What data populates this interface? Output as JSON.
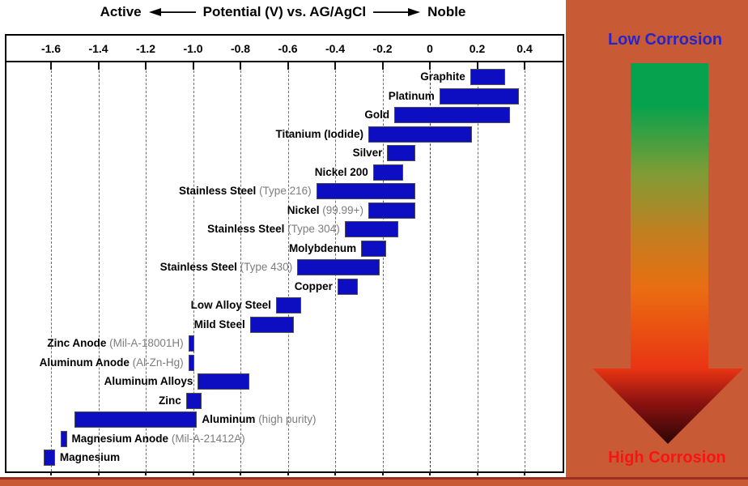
{
  "title": {
    "active_label": "Active",
    "center_label": "Potential (V) vs. AG/AgCl",
    "noble_label": "Noble"
  },
  "axis": {
    "tick_labels": [
      "-1.6",
      "-1.4",
      "-1.2",
      "-1.0",
      "-0.8",
      "-0.6",
      "-0.4",
      "-0.2",
      "0",
      "0.2",
      "0.4"
    ],
    "tick_values": [
      -1.6,
      -1.4,
      -1.2,
      -1.0,
      -0.8,
      -0.6,
      -0.4,
      -0.2,
      0,
      0.2,
      0.4
    ]
  },
  "chart_data": {
    "type": "bar",
    "orientation": "horizontal-range",
    "title": "Active — Potential (V) vs. AG/AgCl — Noble",
    "xlabel": "Potential (V) vs. AG/AgCl",
    "xlim": [
      -1.79,
      0.57
    ],
    "xticks": [
      -1.6,
      -1.4,
      -1.2,
      -1.0,
      -0.8,
      -0.6,
      -0.4,
      -0.2,
      0,
      0.2,
      0.4
    ],
    "grid": "vertical-dashed",
    "zero_line": "dashed",
    "bar_color": "#0d0dc2",
    "bar_border_color": "#4d4d4d",
    "series": [
      {
        "name": "Graphite",
        "note": "",
        "range": [
          0.17,
          0.31
        ],
        "label_side": "left"
      },
      {
        "name": "Platinum",
        "note": "",
        "range": [
          0.04,
          0.37
        ],
        "label_side": "left"
      },
      {
        "name": "Gold",
        "note": "",
        "range": [
          -0.15,
          0.33
        ],
        "label_side": "left"
      },
      {
        "name": "Titanium (Iodide)",
        "note": "",
        "range": [
          -0.26,
          0.17
        ],
        "label_side": "left"
      },
      {
        "name": "Silver",
        "note": "",
        "range": [
          -0.18,
          -0.07
        ],
        "label_side": "left"
      },
      {
        "name": "Nickel 200",
        "note": "",
        "range": [
          -0.24,
          -0.12
        ],
        "label_side": "left"
      },
      {
        "name": "Stainless Steel",
        "note": "(Type 216)",
        "range": [
          -0.48,
          -0.07
        ],
        "label_side": "left"
      },
      {
        "name": "Nickel",
        "note": "(99.99+)",
        "range": [
          -0.26,
          -0.07
        ],
        "label_side": "left"
      },
      {
        "name": "Stainless Steel",
        "note": "(Type 304)",
        "range": [
          -0.36,
          -0.14
        ],
        "label_side": "left"
      },
      {
        "name": "Molybdenum",
        "note": "",
        "range": [
          -0.29,
          -0.19
        ],
        "label_side": "left"
      },
      {
        "name": "Stainless Steel",
        "note": "(Type 430)",
        "range": [
          -0.56,
          -0.22
        ],
        "label_side": "left"
      },
      {
        "name": "Copper",
        "note": "",
        "range": [
          -0.39,
          -0.31
        ],
        "label_side": "left"
      },
      {
        "name": "Low Alloy Steel",
        "note": "",
        "range": [
          -0.65,
          -0.55
        ],
        "label_side": "left"
      },
      {
        "name": "Mild Steel",
        "note": "",
        "range": [
          -0.76,
          -0.58
        ],
        "label_side": "left"
      },
      {
        "name": "Zinc Anode",
        "note": "(Mil-A-18001H)",
        "range": [
          -1.02,
          -1.0
        ],
        "label_side": "left"
      },
      {
        "name": "Aluminum Anode",
        "note": "(Al-Zn-Hg)",
        "range": [
          -1.02,
          -1.0
        ],
        "label_side": "left"
      },
      {
        "name": "Aluminum Alloys",
        "note": "",
        "range": [
          -0.98,
          -0.77
        ],
        "label_side": "left"
      },
      {
        "name": "Zinc",
        "note": "",
        "range": [
          -1.03,
          -0.97
        ],
        "label_side": "left"
      },
      {
        "name": "Aluminum",
        "note": "(high purity)",
        "range": [
          -1.5,
          -0.99
        ],
        "label_side": "right"
      },
      {
        "name": "Magnesium Anode",
        "note": "(Mil-A-21412A)",
        "range": [
          -1.56,
          -1.54
        ],
        "label_side": "right"
      },
      {
        "name": "Magnesium",
        "note": "",
        "range": [
          -1.63,
          -1.59
        ],
        "label_side": "right"
      }
    ]
  },
  "right_panel": {
    "low_label": "Low Corrosion",
    "high_label": "High Corrosion",
    "low_label_color": "#2525c8",
    "high_label_color": "#f81414",
    "background_color": "#c95a36",
    "arrow_gradient": [
      "#07a24d",
      "#7f9c35",
      "#c08021",
      "#ea6d12",
      "#e93413",
      "#8c1210",
      "#2b0505"
    ]
  }
}
